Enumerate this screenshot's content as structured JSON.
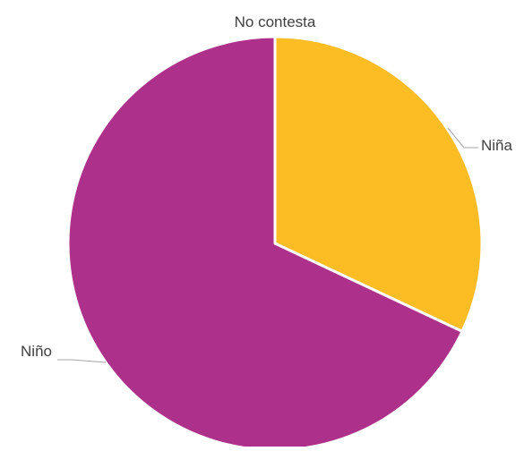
{
  "chart_data": {
    "type": "pie",
    "title": "",
    "slices": [
      {
        "label": "Niña",
        "value": 32,
        "color": "#FBBC24"
      },
      {
        "label": "Niño",
        "value": 68,
        "color": "#AD318A"
      },
      {
        "label": "No contesta",
        "value": 0,
        "color": "#7F7F7F"
      }
    ],
    "start_angle_deg": 0,
    "direction": "clockwise",
    "slice_border_color": "#FFFFFF",
    "leader_line_color": "#A6A6A6",
    "label_color": "#404040"
  }
}
